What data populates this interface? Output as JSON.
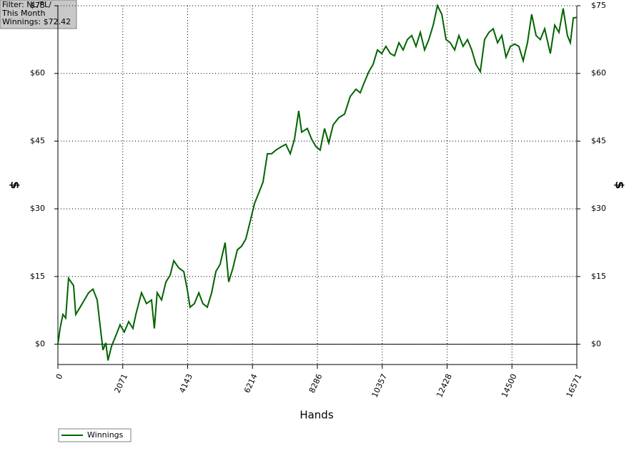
{
  "chart_data": {
    "type": "line",
    "annotation": [
      "Filter: NL/PL/",
      "This Month",
      "Winnings: $72.42"
    ],
    "x_label": "Hands",
    "y_label": "$",
    "xlim": [
      0,
      16571
    ],
    "xticks": [
      0,
      2071,
      4143,
      6214,
      8286,
      10357,
      12428,
      14500,
      16571
    ],
    "ylim": [
      -4.5,
      75
    ],
    "yticks": [
      {
        "value": 0,
        "label": "$0"
      },
      {
        "value": 15,
        "label": "$15"
      },
      {
        "value": 30,
        "label": "$30"
      },
      {
        "value": 45,
        "label": "$45"
      },
      {
        "value": 60,
        "label": "$60"
      },
      {
        "value": 75,
        "label": "$75"
      }
    ],
    "grid": true,
    "legend": "bottom-left",
    "series": [
      {
        "name": "Winnings",
        "color": "#006400",
        "x": [
          0,
          70,
          160,
          250,
          340,
          500,
          570,
          710,
          845,
          980,
          1120,
          1255,
          1345,
          1440,
          1530,
          1600,
          1710,
          1850,
          1985,
          2120,
          2260,
          2395,
          2490,
          2670,
          2830,
          2990,
          3080,
          3170,
          3310,
          3450,
          3585,
          3700,
          3860,
          4020,
          4130,
          4220,
          4360,
          4500,
          4630,
          4770,
          4910,
          5045,
          5180,
          5340,
          5455,
          5590,
          5730,
          5865,
          6000,
          6140,
          6280,
          6415,
          6550,
          6690,
          6825,
          6960,
          7145,
          7280,
          7420,
          7555,
          7690,
          7785,
          7965,
          8105,
          8240,
          8375,
          8515,
          8650,
          8790,
          8970,
          9155,
          9335,
          9520,
          9655,
          9790,
          9930,
          10065,
          10205,
          10340,
          10475,
          10615,
          10750,
          10890,
          11025,
          11160,
          11300,
          11435,
          11575,
          11710,
          11845,
          11985,
          12120,
          12260,
          12395,
          12530,
          12670,
          12805,
          12940,
          13080,
          13215,
          13350,
          13490,
          13625,
          13765,
          13900,
          14040,
          14175,
          14310,
          14450,
          14585,
          14720,
          14860,
          14995,
          15130,
          15270,
          15405,
          15545,
          15725,
          15865,
          16000,
          16135,
          16270,
          16365,
          16460,
          16571
        ],
        "values": [
          0,
          3.5,
          6.6,
          5.8,
          14.6,
          13,
          6.6,
          8.2,
          9.8,
          11.4,
          12.2,
          9.8,
          4.3,
          -1.3,
          0.3,
          -3.6,
          -0.5,
          1.9,
          4.3,
          2.7,
          5,
          3.5,
          6.6,
          11.4,
          9,
          9.8,
          3.5,
          11.4,
          9.8,
          13.8,
          15.3,
          18.5,
          16.9,
          16.1,
          12.2,
          8.2,
          9,
          11.4,
          9,
          8.2,
          11.4,
          16.1,
          17.7,
          22.5,
          13.8,
          16.9,
          20.9,
          21.7,
          23.3,
          27.2,
          31.2,
          33.5,
          35.9,
          42.2,
          42.2,
          43,
          43.8,
          44.3,
          42.2,
          45.4,
          51.7,
          47,
          47.8,
          45.4,
          43.8,
          43,
          47.8,
          44.6,
          48.6,
          50.2,
          51,
          54.9,
          56.5,
          55.7,
          58.1,
          60.4,
          62,
          65.2,
          64.4,
          66,
          64.4,
          63.9,
          66.8,
          65.2,
          67.5,
          68.4,
          66,
          69.1,
          65.2,
          67.5,
          70.7,
          75,
          73.1,
          67.5,
          66.8,
          65.2,
          68.4,
          66,
          67.5,
          65.2,
          62,
          60.4,
          67.5,
          69.1,
          69.9,
          66.8,
          68.4,
          63.6,
          66,
          66.5,
          66,
          62.8,
          66.8,
          73.1,
          68.4,
          67.5,
          69.9,
          64.4,
          70.7,
          69.1,
          74.4,
          68.4,
          66.8,
          72.3,
          72.4
        ]
      }
    ]
  }
}
